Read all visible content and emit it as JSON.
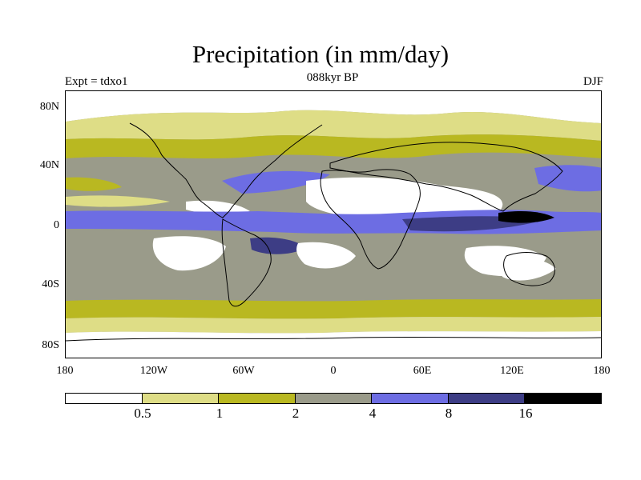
{
  "title": "Precipitation (in mm/day)",
  "left_label": "Expt = tdxo1",
  "center_label": "088kyr BP",
  "right_label": "DJF",
  "lat_ticks": [
    "80N",
    "40N",
    "0",
    "40S",
    "80S"
  ],
  "lon_ticks": [
    "180",
    "120W",
    "60W",
    "0",
    "60E",
    "120E",
    "180"
  ],
  "legend": {
    "levels": [
      "0.5",
      "1",
      "2",
      "4",
      "8",
      "16"
    ],
    "colors": [
      "#ffffff",
      "#dedd86",
      "#b9b821",
      "#9a9b8a",
      "#6d6de3",
      "#3d3d85",
      "#000000"
    ]
  },
  "colors": {
    "ocean_low": "#ffffff",
    "coast": "#000000"
  }
}
